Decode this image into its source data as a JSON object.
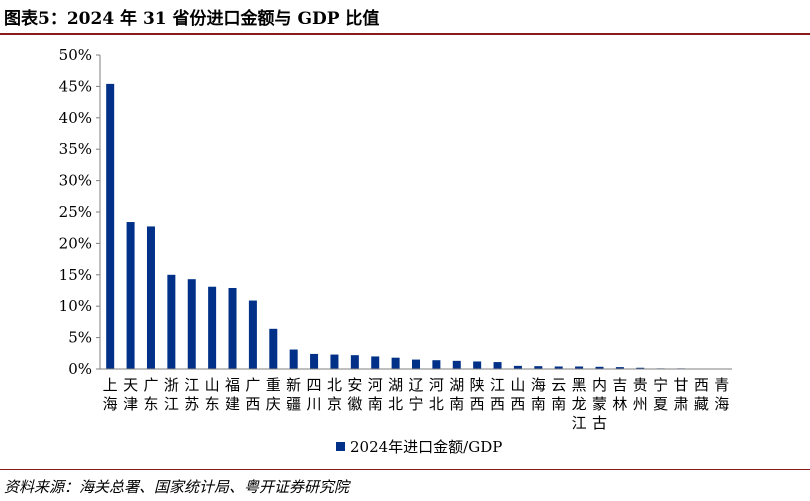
{
  "figure": {
    "title": "图表5：2024 年 31 省份进口金额与 GDP 比值",
    "source": "资料来源：海关总署、国家统计局、粤开证券研究院"
  },
  "colors": {
    "bar": "#003087",
    "axis": "#7f7f7f",
    "rule": "#8b1a1a"
  },
  "chart_data": {
    "type": "bar",
    "categories": [
      "上海",
      "天津",
      "广东",
      "浙江",
      "江苏",
      "山东",
      "福建",
      "广西",
      "重庆",
      "新疆",
      "四川",
      "北京",
      "安徽",
      "河南",
      "湖北",
      "辽宁",
      "河北",
      "湖南",
      "陕西",
      "江西",
      "山西",
      "海南",
      "云南",
      "黑龙江",
      "内蒙古",
      "吉林",
      "贵州",
      "宁夏",
      "甘肃",
      "西藏",
      "青海"
    ],
    "series": [
      {
        "name": "2024年进口金额/GDP",
        "values": [
          45.4,
          23.4,
          22.7,
          15.0,
          14.3,
          13.1,
          12.9,
          10.9,
          6.4,
          3.1,
          2.4,
          2.3,
          2.2,
          2.0,
          1.8,
          1.5,
          1.4,
          1.3,
          1.2,
          1.1,
          0.5,
          0.45,
          0.4,
          0.4,
          0.35,
          0.3,
          0.2,
          0.1,
          0.1,
          0.05,
          0.05
        ]
      }
    ],
    "yticks": [
      "0%",
      "5%",
      "10%",
      "15%",
      "20%",
      "25%",
      "30%",
      "35%",
      "40%",
      "45%",
      "50%"
    ],
    "ylim": [
      0,
      50
    ],
    "legend_position": "bottom-center"
  }
}
